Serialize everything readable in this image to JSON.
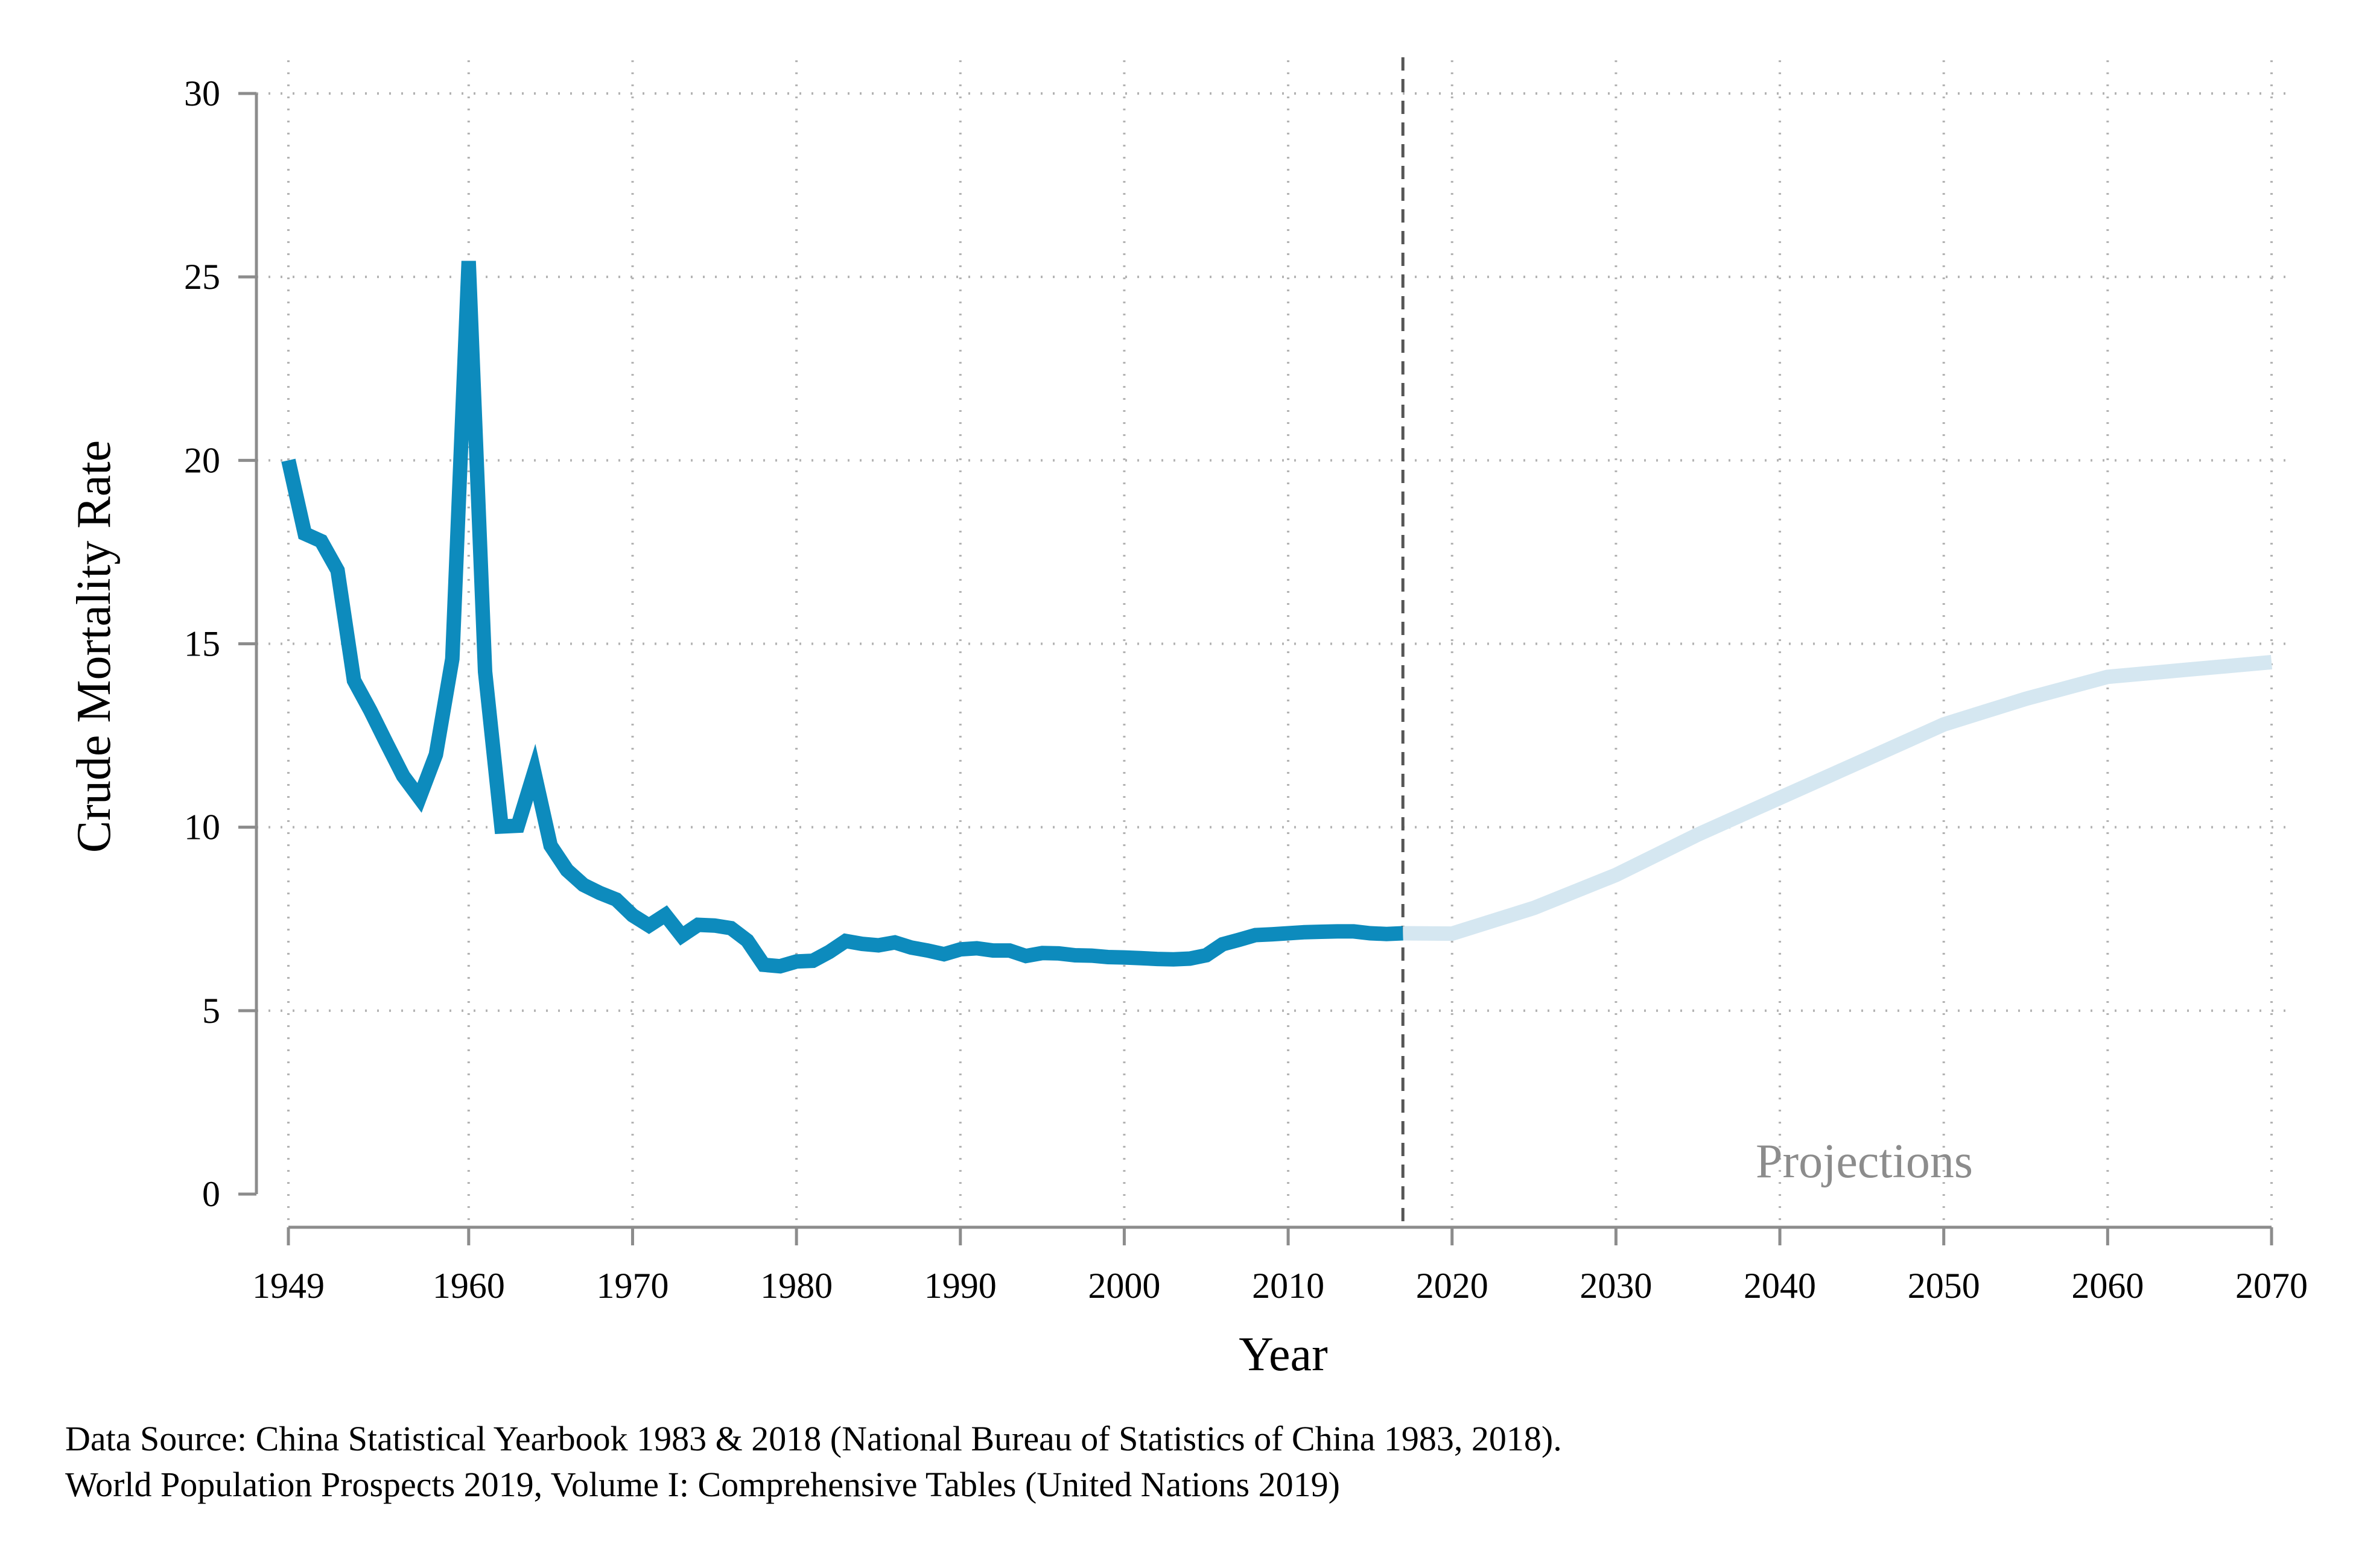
{
  "chart_data": {
    "type": "line",
    "title": "",
    "xlabel": "Year",
    "ylabel": "Crude Mortality Rate",
    "xlim": [
      1949,
      2070
    ],
    "ylim": [
      0,
      30
    ],
    "x_ticks": [
      1949,
      1960,
      1970,
      1980,
      1990,
      2000,
      2010,
      2020,
      2030,
      2040,
      2050,
      2060,
      2070
    ],
    "y_ticks": [
      0,
      5,
      10,
      15,
      20,
      25,
      30
    ],
    "grid": true,
    "divider_year": 2017,
    "annotation": "Projections",
    "colors": {
      "observed": "#0d8bbd",
      "projected": "#d5e7f1",
      "grid": "#b3b3b3",
      "axis": "#8c8c8c",
      "divider": "#555555"
    },
    "series": [
      {
        "x": [
          1949,
          1950,
          1951,
          1952,
          1953,
          1954,
          1955,
          1956,
          1957,
          1958,
          1959,
          1960,
          1961,
          1962,
          1963,
          1964,
          1965,
          1966,
          1967,
          1968,
          1969,
          1970,
          1971,
          1972,
          1973,
          1974,
          1975,
          1976,
          1977,
          1978,
          1979,
          1980,
          1981,
          1982,
          1983,
          1984,
          1985,
          1986,
          1987,
          1988,
          1989,
          1990,
          1991,
          1992,
          1993,
          1994,
          1995,
          1996,
          1997,
          1998,
          1999,
          2000,
          2001,
          2002,
          2003,
          2004,
          2005,
          2006,
          2007,
          2008,
          2009,
          2010,
          2011,
          2012,
          2013,
          2014,
          2015,
          2016,
          2017
        ],
        "values": [
          20.0,
          18.0,
          17.8,
          17.0,
          14.0,
          13.18,
          12.28,
          11.4,
          10.8,
          11.98,
          14.59,
          25.43,
          14.24,
          10.02,
          10.04,
          11.5,
          9.5,
          8.83,
          8.43,
          8.21,
          8.03,
          7.6,
          7.32,
          7.61,
          7.04,
          7.34,
          7.32,
          7.25,
          6.91,
          6.25,
          6.21,
          6.34,
          6.36,
          6.6,
          6.9,
          6.82,
          6.78,
          6.86,
          6.72,
          6.64,
          6.54,
          6.67,
          6.7,
          6.64,
          6.64,
          6.49,
          6.57,
          6.56,
          6.51,
          6.5,
          6.46,
          6.45,
          6.43,
          6.41,
          6.4,
          6.42,
          6.51,
          6.81,
          6.93,
          7.06,
          7.08,
          7.11,
          7.14,
          7.15,
          7.16,
          7.16,
          7.11,
          7.09,
          7.11
        ]
      },
      {
        "x": [
          2017,
          2020,
          2025,
          2030,
          2035,
          2040,
          2045,
          2050,
          2055,
          2060,
          2065,
          2070
        ],
        "values": [
          7.11,
          7.1,
          7.8,
          8.7,
          9.8,
          10.8,
          11.8,
          12.8,
          13.5,
          14.1,
          14.3,
          14.5
        ]
      }
    ]
  },
  "source_lines": [
    "Data Source: China Statistical Yearbook 1983 & 2018 (National Bureau of Statistics of China 1983, 2018).",
    "World Population Prospects 2019, Volume I: Comprehensive Tables (United Nations 2019)"
  ]
}
